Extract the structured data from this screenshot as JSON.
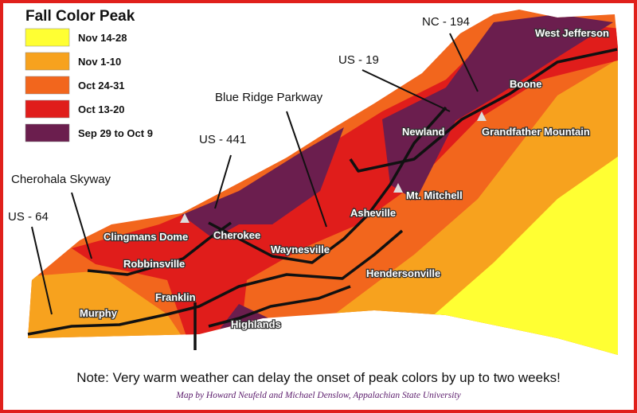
{
  "legend": {
    "title": "Fall Color Peak",
    "items": [
      {
        "label": "Nov 14-28",
        "color": "#ffff33"
      },
      {
        "label": "Nov 1-10",
        "color": "#f7a21e"
      },
      {
        "label": "Oct 24-31",
        "color": "#f2661d"
      },
      {
        "label": "Oct 13-20",
        "color": "#e01d1b"
      },
      {
        "label": "Sep 29 to Oct 9",
        "color": "#6b1e4e"
      }
    ]
  },
  "routes": [
    "NC - 194",
    "US - 19",
    "Blue Ridge Parkway",
    "US - 441",
    "Cherohala Skyway",
    "US - 64"
  ],
  "places": [
    "West Jefferson",
    "Boone",
    "Newland",
    "Grandfather Mountain",
    "Mt. Mitchell",
    "Asheville",
    "Clingmans Dome",
    "Cherokee",
    "Robbinsville",
    "Waynesville",
    "Hendersonville",
    "Franklin",
    "Murphy",
    "Highlands"
  ],
  "note": "Note: Very warm weather can delay the onset of peak colors by up to two weeks!",
  "credit": "Map by Howard Neufeld and Michael Denslow, Appalachian State University"
}
